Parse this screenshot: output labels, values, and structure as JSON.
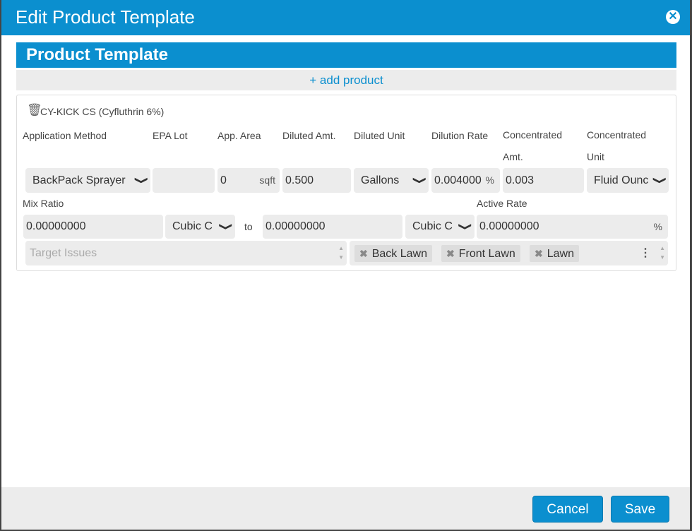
{
  "dialog": {
    "title": "Edit Product Template"
  },
  "section": {
    "title": "Product Template",
    "add_product": "+ add product"
  },
  "product": {
    "name": "CY-KICK CS (Cyfluthrin 6%)",
    "labels": {
      "application_method": "Application Method",
      "epa_lot": "EPA Lot",
      "app_area": "App. Area",
      "diluted_amt": "Diluted Amt.",
      "diluted_unit": "Diluted Unit",
      "dilution_rate": "Dilution Rate",
      "concentrated_amt": "Concentrated Amt.",
      "concentrated_unit": "Concentrated Unit",
      "mix_ratio": "Mix Ratio",
      "active_rate": "Active Rate",
      "to": "to"
    },
    "application_method": "BackPack Sprayer",
    "epa_lot": "",
    "app_area": "0",
    "app_area_unit": "sqft",
    "diluted_amt": "0.500",
    "diluted_unit": "Gallons",
    "dilution_rate": "0.004000",
    "dilution_rate_unit": "%",
    "concentrated_amt": "0.003",
    "concentrated_unit": "Fluid Ounc",
    "mix_ratio_from": "0.00000000",
    "mix_ratio_from_unit": "Cubic C",
    "mix_ratio_to": "0.00000000",
    "mix_ratio_to_unit": "Cubic C",
    "active_rate": "0.00000000",
    "active_rate_unit": "%",
    "target_issues_placeholder": "Target Issues",
    "locations": [
      "Back Lawn",
      "Front Lawn",
      "Lawn"
    ]
  },
  "footer": {
    "cancel": "Cancel",
    "save": "Save"
  },
  "colors": {
    "accent": "#0b8fcf"
  }
}
